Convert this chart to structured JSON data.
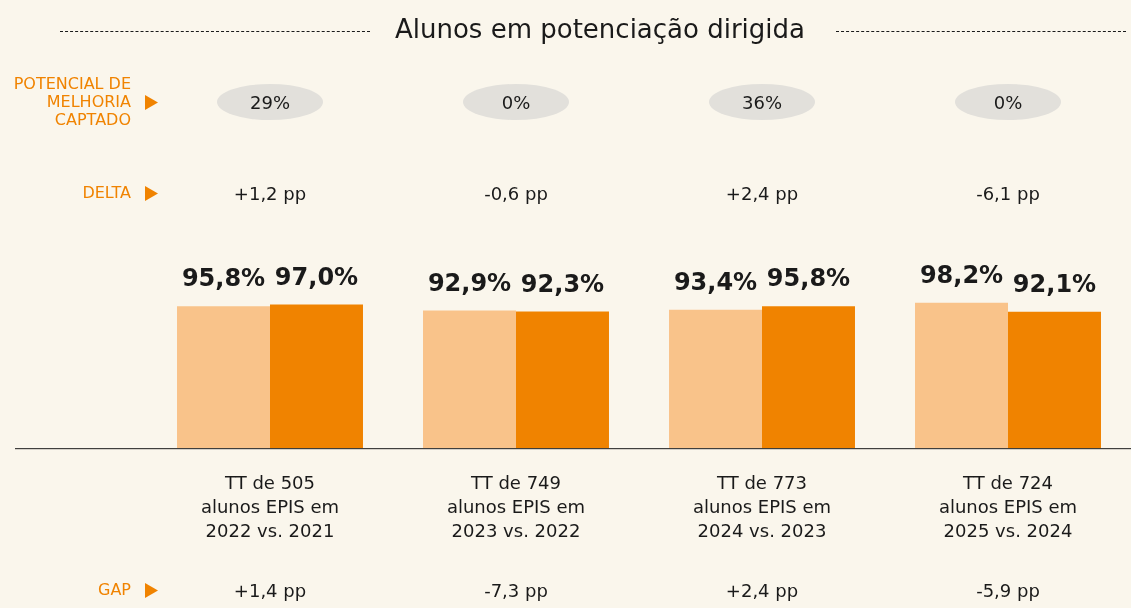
{
  "chart_data": {
    "type": "bar",
    "title": "Alunos em potenciação dirigida",
    "categories": [
      "TT de 505 alunos EPIS em 2022 vs. 2021",
      "TT de 749 alunos EPIS em 2023 vs. 2022",
      "TT de 773 alunos EPIS em 2024 vs. 2023",
      "TT de 724 alunos EPIS em 2025 vs. 2024"
    ],
    "series": [
      {
        "color": "#f9c38a",
        "values": [
          95.8,
          92.9,
          93.4,
          98.2
        ],
        "value_labels": [
          "95,8%",
          "92,9%",
          "93,4%",
          "98,2%"
        ]
      },
      {
        "color": "#f08300",
        "values": [
          97.0,
          92.3,
          95.8,
          92.1
        ],
        "value_labels": [
          "97,0%",
          "92,3%",
          "95,8%",
          "92,1%"
        ]
      }
    ],
    "tick_labels": "x",
    "grid": false,
    "legend": false,
    "annotations": [
      "POTENCIAL DE MELHORIA CAPTADO",
      "29%",
      "0%",
      "36%",
      "0%",
      "DELTA",
      "+1,2 pp",
      "-0,6 pp",
      "+2,4 pp",
      "-6,1 pp",
      "GAP",
      "+1,4 pp",
      "-7,3 pp",
      "+2,4 pp",
      "-5,9 pp"
    ]
  }
}
